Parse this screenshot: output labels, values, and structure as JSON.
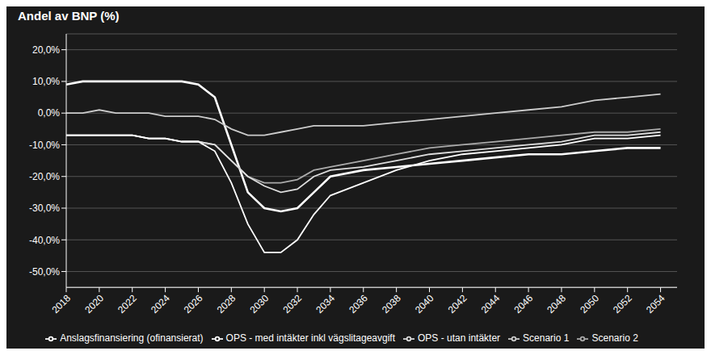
{
  "chart_data": {
    "type": "line",
    "title": "Andel av BNP (%)",
    "x": [
      2018,
      2019,
      2020,
      2021,
      2022,
      2023,
      2024,
      2025,
      2026,
      2027,
      2028,
      2029,
      2030,
      2031,
      2032,
      2033,
      2034,
      2036,
      2038,
      2040,
      2042,
      2044,
      2046,
      2048,
      2050,
      2052,
      2054
    ],
    "xlim": [
      2018,
      2055
    ],
    "xticks": [
      2018,
      2020,
      2022,
      2024,
      2026,
      2028,
      2030,
      2032,
      2034,
      2036,
      2038,
      2040,
      2042,
      2044,
      2046,
      2048,
      2050,
      2052,
      2054
    ],
    "ylim": [
      -0.55,
      0.25
    ],
    "yticks": [
      {
        "value": 0.2,
        "label": "20,0%"
      },
      {
        "value": 0.1,
        "label": "10,0%"
      },
      {
        "value": 0.0,
        "label": "0,0%"
      },
      {
        "value": -0.1,
        "label": "-10,0%"
      },
      {
        "value": -0.2,
        "label": "-20,0%"
      },
      {
        "value": -0.3,
        "label": "-30,0%"
      },
      {
        "value": -0.4,
        "label": "-40,0%"
      },
      {
        "value": -0.5,
        "label": "-50,0%"
      }
    ],
    "grid": true,
    "legend": "bottom",
    "series": [
      {
        "name": "Anslagsfinansiering (ofinansierat)",
        "color": "#ffffff",
        "values": [
          0.09,
          0.1,
          0.1,
          0.1,
          0.1,
          0.1,
          0.1,
          0.1,
          0.09,
          0.05,
          -0.1,
          -0.25,
          -0.3,
          -0.31,
          -0.3,
          -0.25,
          -0.2,
          -0.18,
          -0.17,
          -0.16,
          -0.15,
          -0.14,
          -0.13,
          -0.13,
          -0.12,
          -0.11,
          -0.11
        ]
      },
      {
        "name": "Scenario 1",
        "color": "#cccccc",
        "values": [
          0.0,
          0.0,
          0.01,
          0.0,
          0.0,
          0.0,
          -0.01,
          -0.01,
          -0.01,
          -0.02,
          -0.05,
          -0.07,
          -0.07,
          -0.06,
          -0.05,
          -0.04,
          -0.04,
          -0.04,
          -0.03,
          -0.02,
          -0.01,
          0.0,
          0.01,
          0.02,
          0.04,
          0.05,
          0.06
        ]
      },
      {
        "name": "Scenario 2",
        "color": "#aaaaaa",
        "values": [
          -0.07,
          -0.07,
          -0.07,
          -0.07,
          -0.07,
          -0.08,
          -0.08,
          -0.09,
          -0.09,
          -0.1,
          -0.15,
          -0.2,
          -0.22,
          -0.22,
          -0.21,
          -0.18,
          -0.17,
          -0.15,
          -0.13,
          -0.11,
          -0.1,
          -0.09,
          -0.08,
          -0.07,
          -0.06,
          -0.06,
          -0.05
        ]
      },
      {
        "name": "OPS - utan intäkter",
        "color": "#dddddd",
        "values": [
          -0.07,
          -0.07,
          -0.07,
          -0.07,
          -0.07,
          -0.08,
          -0.08,
          -0.09,
          -0.09,
          -0.1,
          -0.15,
          -0.2,
          -0.23,
          -0.25,
          -0.24,
          -0.2,
          -0.18,
          -0.17,
          -0.15,
          -0.13,
          -0.12,
          -0.11,
          -0.1,
          -0.09,
          -0.07,
          -0.07,
          -0.06
        ]
      },
      {
        "name": "OPS - med intäkter inkl vägslitageavgift",
        "color": "#ffffff",
        "values": [
          -0.07,
          -0.07,
          -0.07,
          -0.07,
          -0.07,
          -0.08,
          -0.08,
          -0.09,
          -0.09,
          -0.12,
          -0.22,
          -0.35,
          -0.44,
          -0.44,
          -0.4,
          -0.32,
          -0.26,
          -0.22,
          -0.18,
          -0.15,
          -0.13,
          -0.12,
          -0.11,
          -0.1,
          -0.08,
          -0.08,
          -0.07
        ]
      }
    ]
  }
}
